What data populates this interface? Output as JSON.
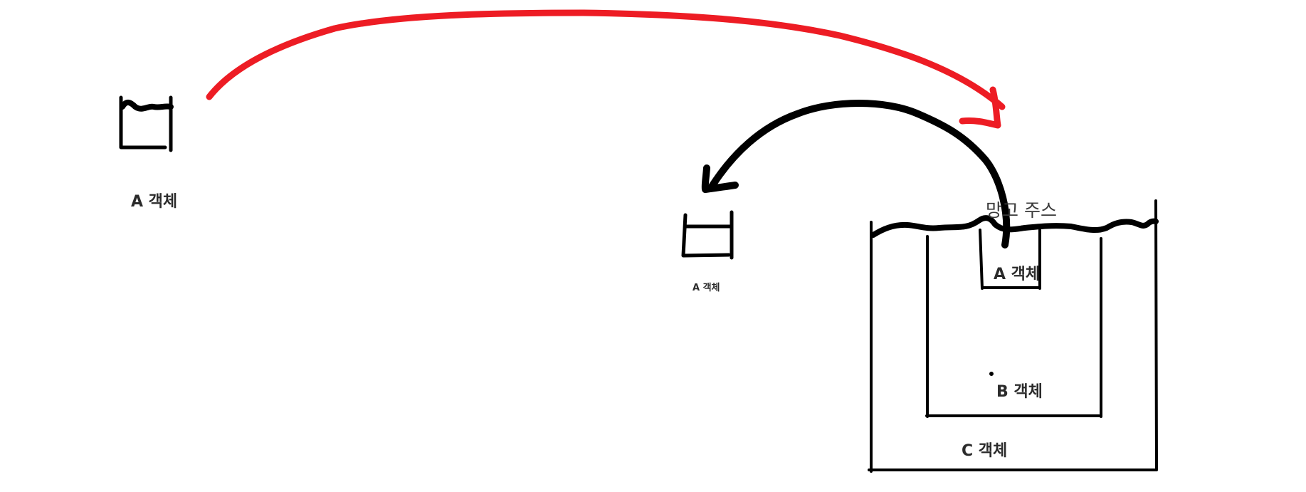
{
  "colors": {
    "background": "#ffffff",
    "ink": "#000000",
    "red_arrow": "#ed1c24",
    "label_text": "#2b2b2b"
  },
  "labels": {
    "a_object_left": "A 객체",
    "a_object_middle": "A 객체",
    "a_object_inside": "A 객체",
    "b_object": "B 객체",
    "c_object": "C 객체",
    "mango_juice": "망고 주스"
  }
}
